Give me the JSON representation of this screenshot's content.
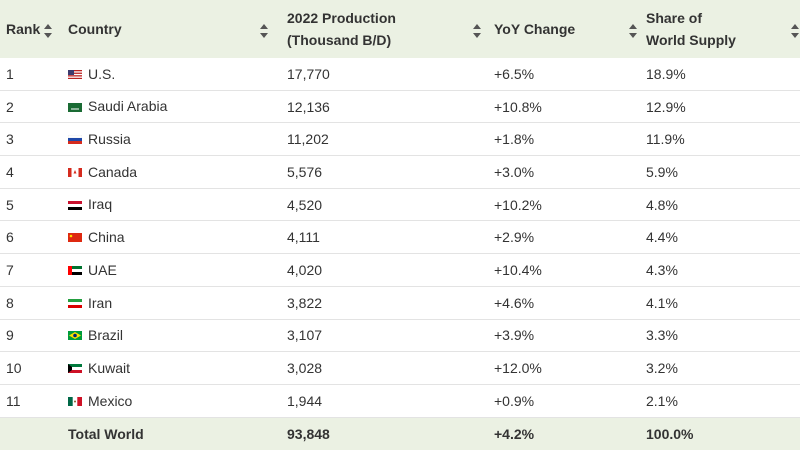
{
  "table": {
    "columns": [
      {
        "lines": [
          "Rank"
        ]
      },
      {
        "lines": [
          "Country"
        ]
      },
      {
        "lines": [
          "2022 Production",
          "(Thousand B/D)"
        ]
      },
      {
        "lines": [
          "YoY Change"
        ]
      },
      {
        "lines": [
          "Share of",
          "World Supply"
        ]
      }
    ],
    "rows": [
      [
        "1",
        "U.S.",
        "17,770",
        "+6.5%",
        "18.9%"
      ],
      [
        "2",
        "Saudi Arabia",
        "12,136",
        "+10.8%",
        "12.9%"
      ],
      [
        "3",
        "Russia",
        "11,202",
        "+1.8%",
        "11.9%"
      ],
      [
        "4",
        "Canada",
        "5,576",
        "+3.0%",
        "5.9%"
      ],
      [
        "5",
        "Iraq",
        "4,520",
        "+10.2%",
        "4.8%"
      ],
      [
        "6",
        "China",
        "4,111",
        "+2.9%",
        "4.4%"
      ],
      [
        "7",
        "UAE",
        "4,020",
        "+10.4%",
        "4.3%"
      ],
      [
        "8",
        "Iran",
        "3,822",
        "+4.6%",
        "4.1%"
      ],
      [
        "9",
        "Brazil",
        "3,107",
        "+3.9%",
        "3.3%"
      ],
      [
        "10",
        "Kuwait",
        "3,028",
        "+12.0%",
        "3.2%"
      ],
      [
        "11",
        "Mexico",
        "1,944",
        "+0.9%",
        "2.1%"
      ]
    ],
    "footer": [
      "Total World",
      "93,848",
      "+4.2%",
      "100.0%"
    ]
  }
}
